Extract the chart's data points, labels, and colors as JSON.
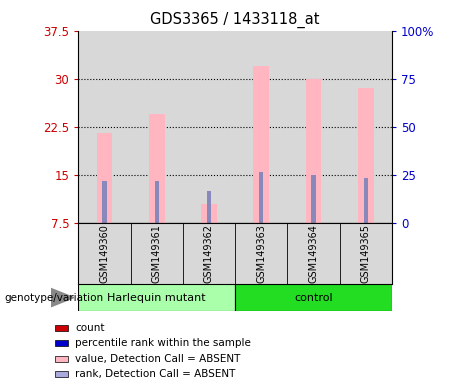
{
  "title": "GDS3365 / 1433118_at",
  "samples": [
    "GSM149360",
    "GSM149361",
    "GSM149362",
    "GSM149363",
    "GSM149364",
    "GSM149365"
  ],
  "pink_bars": [
    21.5,
    24.5,
    10.5,
    32.0,
    30.0,
    28.5
  ],
  "blue_bars": [
    14.0,
    14.0,
    12.5,
    15.5,
    15.0,
    14.5
  ],
  "ylim_left": [
    7.5,
    37.5
  ],
  "ylim_right": [
    0,
    100
  ],
  "left_ticks": [
    7.5,
    15.0,
    22.5,
    30.0,
    37.5
  ],
  "right_ticks": [
    0,
    25,
    50,
    75,
    100
  ],
  "groups": [
    {
      "label": "Harlequin mutant",
      "indices": [
        0,
        1,
        2
      ],
      "color": "#AAFFAA"
    },
    {
      "label": "control",
      "indices": [
        3,
        4,
        5
      ],
      "color": "#22DD22"
    }
  ],
  "genotype_label": "genotype/variation",
  "pink_bar_color": "#FFB6C1",
  "blue_bar_color": "#8888BB",
  "pink_bar_width": 0.3,
  "blue_bar_width": 0.08,
  "plot_bg_color": "#D8D8D8",
  "grid_color": "black",
  "left_axis_color": "#CC0000",
  "right_axis_color": "#0000CC",
  "legend_items": [
    {
      "color": "#CC0000",
      "label": "count"
    },
    {
      "color": "#0000CC",
      "label": "percentile rank within the sample"
    },
    {
      "color": "#FFB6C1",
      "label": "value, Detection Call = ABSENT"
    },
    {
      "color": "#AAAADD",
      "label": "rank, Detection Call = ABSENT"
    }
  ]
}
